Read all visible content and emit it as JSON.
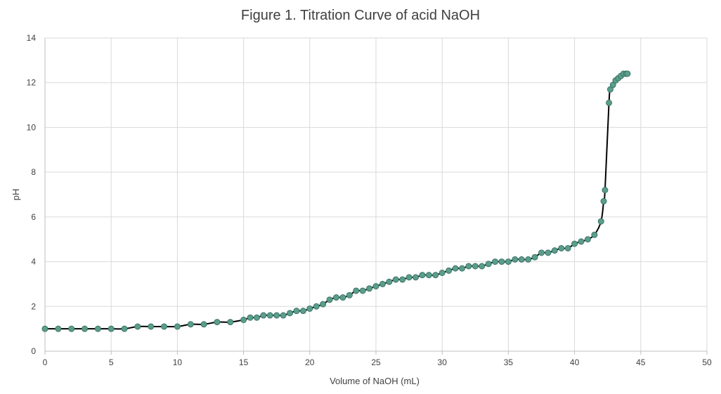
{
  "chart_data": {
    "type": "scatter",
    "title": "Figure 1. Titration Curve of acid NaOH",
    "xlabel": "Volume of NaOH (mL)",
    "ylabel": "pH",
    "xlim": [
      0,
      50
    ],
    "ylim": [
      0,
      14
    ],
    "xticks": [
      0,
      5,
      10,
      15,
      20,
      25,
      30,
      35,
      40,
      45,
      50
    ],
    "yticks": [
      0,
      2,
      4,
      6,
      8,
      10,
      12,
      14
    ],
    "grid": true,
    "legend": "none",
    "colors": {
      "marker": "#5a9e8b",
      "marker_edge": "#3d7466",
      "line": "#000000",
      "grid": "#d9d9d9",
      "text": "#404040"
    },
    "series": [
      {
        "x": [
          0,
          1,
          2,
          3,
          4,
          5,
          6,
          7,
          8,
          9,
          10,
          11,
          12,
          13,
          14,
          15,
          15.5,
          16,
          16.5,
          17,
          17.5,
          18,
          18.5,
          19,
          19.5,
          20,
          20.5,
          21,
          21.5,
          22,
          22.5,
          23,
          23.5,
          24,
          24.5,
          25,
          25.5,
          26,
          26.5,
          27,
          27.5,
          28,
          28.5,
          29,
          29.5,
          30,
          30.5,
          31,
          31.5,
          32,
          32.5,
          33,
          33.5,
          34,
          34.5,
          35,
          35.5,
          36,
          36.5,
          37,
          37.5,
          38,
          38.5,
          39,
          39.5,
          40,
          40.5,
          41,
          41.5,
          42,
          42.2,
          42.3,
          42.6,
          42.7,
          42.9,
          43.1,
          43.3,
          43.5,
          43.7,
          43.9,
          44
        ],
        "y": [
          1.0,
          1.0,
          1.0,
          1.0,
          1.0,
          1.0,
          1.0,
          1.1,
          1.1,
          1.1,
          1.1,
          1.2,
          1.2,
          1.3,
          1.3,
          1.4,
          1.5,
          1.5,
          1.6,
          1.6,
          1.6,
          1.6,
          1.7,
          1.8,
          1.8,
          1.9,
          2.0,
          2.1,
          2.3,
          2.4,
          2.4,
          2.5,
          2.7,
          2.7,
          2.8,
          2.9,
          3.0,
          3.1,
          3.2,
          3.2,
          3.3,
          3.3,
          3.4,
          3.4,
          3.4,
          3.5,
          3.6,
          3.7,
          3.7,
          3.8,
          3.8,
          3.8,
          3.9,
          4.0,
          4.0,
          4.0,
          4.1,
          4.1,
          4.1,
          4.2,
          4.4,
          4.4,
          4.5,
          4.6,
          4.6,
          4.8,
          4.9,
          5.0,
          5.2,
          5.8,
          6.7,
          7.2,
          11.1,
          11.7,
          11.9,
          12.1,
          12.2,
          12.3,
          12.4,
          12.4,
          12.4
        ]
      }
    ]
  }
}
